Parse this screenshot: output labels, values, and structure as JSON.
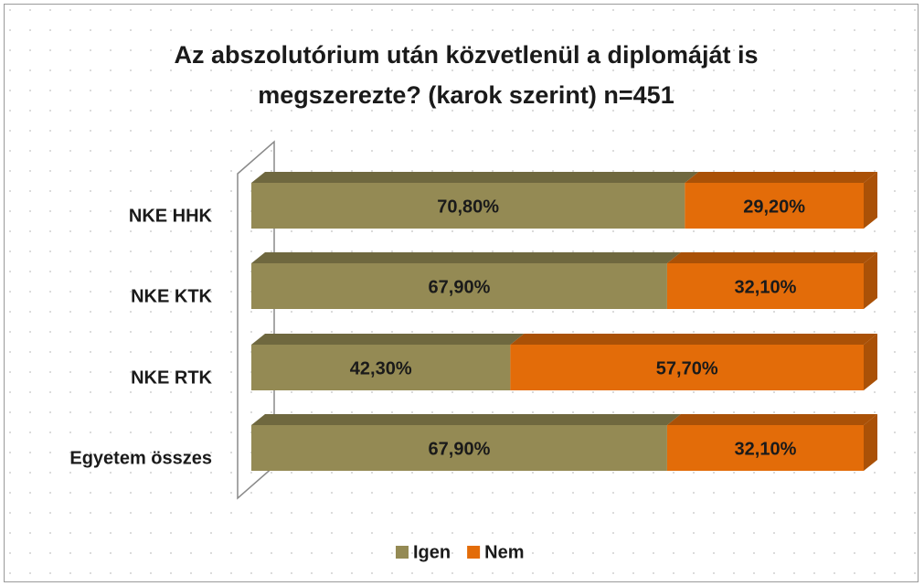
{
  "chart_data": {
    "type": "bar",
    "orientation": "horizontal",
    "stacked": true,
    "title": "Az abszolutórium után közvetlenül a diplomáját is megszerezte? (karok  szerint) n=451",
    "categories": [
      "NKE HHK",
      "NKE KTK",
      "NKE RTK",
      "Egyetem összes"
    ],
    "series": [
      {
        "name": "Igen",
        "color": "#948a54",
        "values": [
          70.8,
          67.9,
          42.3,
          67.9
        ],
        "value_labels": [
          "70,80%",
          "67,90%",
          "42,30%",
          "67,90%"
        ]
      },
      {
        "name": "Nem",
        "color": "#e36c09",
        "values": [
          29.2,
          32.1,
          57.7,
          32.1
        ],
        "value_labels": [
          "29,20%",
          "32,10%",
          "57,70%",
          "32,10%"
        ]
      }
    ],
    "xlim": [
      0,
      100
    ],
    "legend": "bottom"
  }
}
